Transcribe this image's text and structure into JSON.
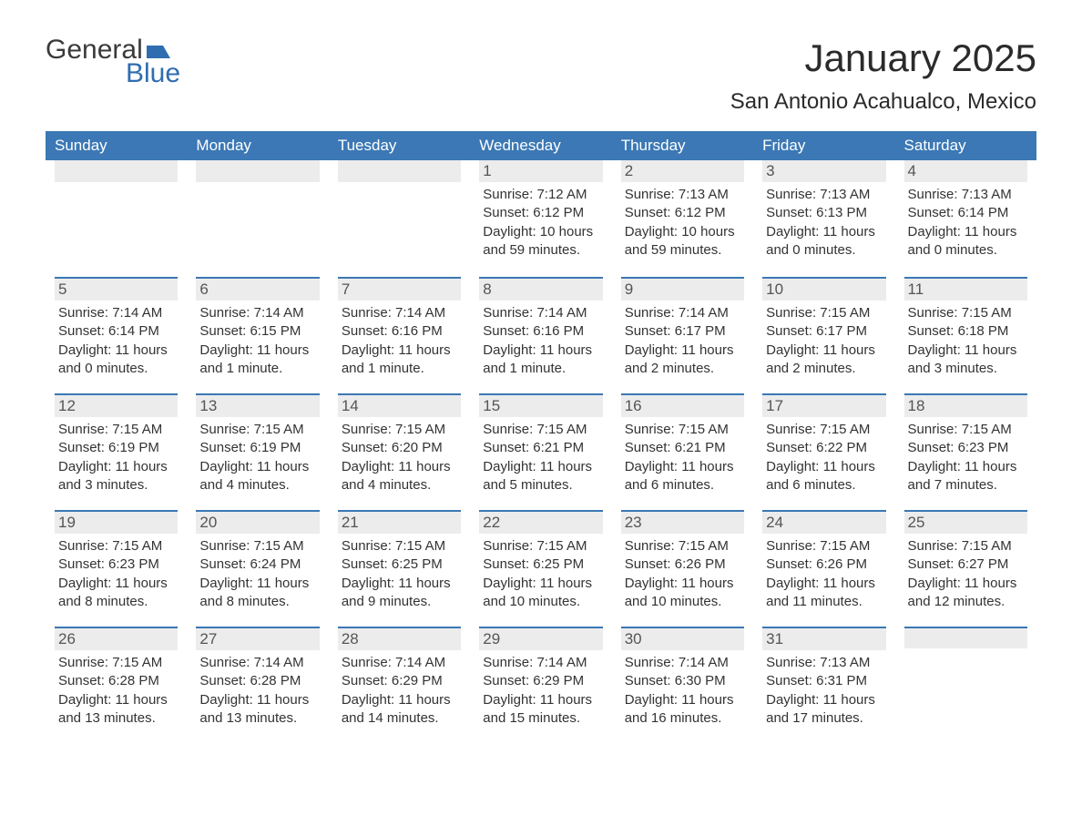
{
  "logo": {
    "word1": "General",
    "word2": "Blue",
    "accent_color": "#2f6db0"
  },
  "title": "January 2025",
  "location": "San Antonio Acahualco, Mexico",
  "colors": {
    "header_bg": "#3b78b5",
    "header_text": "#ffffff",
    "daynum_bg": "#ececec",
    "rule": "#3b78b5",
    "body_text": "#333333"
  },
  "columns": [
    "Sunday",
    "Monday",
    "Tuesday",
    "Wednesday",
    "Thursday",
    "Friday",
    "Saturday"
  ],
  "weeks": [
    [
      null,
      null,
      null,
      {
        "n": "1",
        "sunrise": "7:12 AM",
        "sunset": "6:12 PM",
        "daylight": "10 hours and 59 minutes."
      },
      {
        "n": "2",
        "sunrise": "7:13 AM",
        "sunset": "6:12 PM",
        "daylight": "10 hours and 59 minutes."
      },
      {
        "n": "3",
        "sunrise": "7:13 AM",
        "sunset": "6:13 PM",
        "daylight": "11 hours and 0 minutes."
      },
      {
        "n": "4",
        "sunrise": "7:13 AM",
        "sunset": "6:14 PM",
        "daylight": "11 hours and 0 minutes."
      }
    ],
    [
      {
        "n": "5",
        "sunrise": "7:14 AM",
        "sunset": "6:14 PM",
        "daylight": "11 hours and 0 minutes."
      },
      {
        "n": "6",
        "sunrise": "7:14 AM",
        "sunset": "6:15 PM",
        "daylight": "11 hours and 1 minute."
      },
      {
        "n": "7",
        "sunrise": "7:14 AM",
        "sunset": "6:16 PM",
        "daylight": "11 hours and 1 minute."
      },
      {
        "n": "8",
        "sunrise": "7:14 AM",
        "sunset": "6:16 PM",
        "daylight": "11 hours and 1 minute."
      },
      {
        "n": "9",
        "sunrise": "7:14 AM",
        "sunset": "6:17 PM",
        "daylight": "11 hours and 2 minutes."
      },
      {
        "n": "10",
        "sunrise": "7:15 AM",
        "sunset": "6:17 PM",
        "daylight": "11 hours and 2 minutes."
      },
      {
        "n": "11",
        "sunrise": "7:15 AM",
        "sunset": "6:18 PM",
        "daylight": "11 hours and 3 minutes."
      }
    ],
    [
      {
        "n": "12",
        "sunrise": "7:15 AM",
        "sunset": "6:19 PM",
        "daylight": "11 hours and 3 minutes."
      },
      {
        "n": "13",
        "sunrise": "7:15 AM",
        "sunset": "6:19 PM",
        "daylight": "11 hours and 4 minutes."
      },
      {
        "n": "14",
        "sunrise": "7:15 AM",
        "sunset": "6:20 PM",
        "daylight": "11 hours and 4 minutes."
      },
      {
        "n": "15",
        "sunrise": "7:15 AM",
        "sunset": "6:21 PM",
        "daylight": "11 hours and 5 minutes."
      },
      {
        "n": "16",
        "sunrise": "7:15 AM",
        "sunset": "6:21 PM",
        "daylight": "11 hours and 6 minutes."
      },
      {
        "n": "17",
        "sunrise": "7:15 AM",
        "sunset": "6:22 PM",
        "daylight": "11 hours and 6 minutes."
      },
      {
        "n": "18",
        "sunrise": "7:15 AM",
        "sunset": "6:23 PM",
        "daylight": "11 hours and 7 minutes."
      }
    ],
    [
      {
        "n": "19",
        "sunrise": "7:15 AM",
        "sunset": "6:23 PM",
        "daylight": "11 hours and 8 minutes."
      },
      {
        "n": "20",
        "sunrise": "7:15 AM",
        "sunset": "6:24 PM",
        "daylight": "11 hours and 8 minutes."
      },
      {
        "n": "21",
        "sunrise": "7:15 AM",
        "sunset": "6:25 PM",
        "daylight": "11 hours and 9 minutes."
      },
      {
        "n": "22",
        "sunrise": "7:15 AM",
        "sunset": "6:25 PM",
        "daylight": "11 hours and 10 minutes."
      },
      {
        "n": "23",
        "sunrise": "7:15 AM",
        "sunset": "6:26 PM",
        "daylight": "11 hours and 10 minutes."
      },
      {
        "n": "24",
        "sunrise": "7:15 AM",
        "sunset": "6:26 PM",
        "daylight": "11 hours and 11 minutes."
      },
      {
        "n": "25",
        "sunrise": "7:15 AM",
        "sunset": "6:27 PM",
        "daylight": "11 hours and 12 minutes."
      }
    ],
    [
      {
        "n": "26",
        "sunrise": "7:15 AM",
        "sunset": "6:28 PM",
        "daylight": "11 hours and 13 minutes."
      },
      {
        "n": "27",
        "sunrise": "7:14 AM",
        "sunset": "6:28 PM",
        "daylight": "11 hours and 13 minutes."
      },
      {
        "n": "28",
        "sunrise": "7:14 AM",
        "sunset": "6:29 PM",
        "daylight": "11 hours and 14 minutes."
      },
      {
        "n": "29",
        "sunrise": "7:14 AM",
        "sunset": "6:29 PM",
        "daylight": "11 hours and 15 minutes."
      },
      {
        "n": "30",
        "sunrise": "7:14 AM",
        "sunset": "6:30 PM",
        "daylight": "11 hours and 16 minutes."
      },
      {
        "n": "31",
        "sunrise": "7:13 AM",
        "sunset": "6:31 PM",
        "daylight": "11 hours and 17 minutes."
      },
      null
    ]
  ],
  "labels": {
    "sunrise": "Sunrise: ",
    "sunset": "Sunset: ",
    "daylight": "Daylight: "
  }
}
